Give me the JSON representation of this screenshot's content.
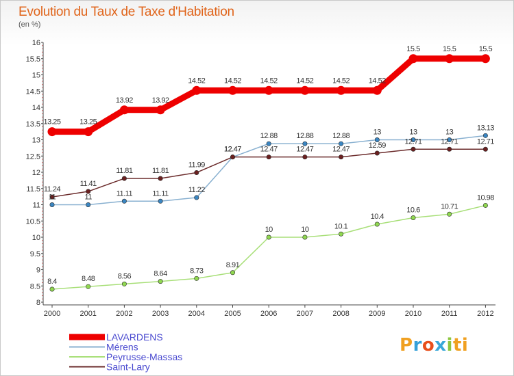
{
  "header": {
    "title": "Evolution du Taux de Taxe d'Habitation",
    "unit": "(en %)"
  },
  "logo": {
    "text": "Proxiti"
  },
  "colors": {
    "LAVARDENS": "#ee0000",
    "Mérens": "#88b0d0",
    "Peyrusse-Massas": "#a8df78",
    "Saint-Lary": "#6b2b2b",
    "Mérens_marker": "#3b86c2",
    "Peyrusse-Massas_marker": "#90d850",
    "Saint-Lary_marker": "#6b2020",
    "legend_text": "#4a4ad0",
    "axis": "#444444"
  },
  "chart_data": {
    "type": "line",
    "title": "Evolution du Taux de Taxe d'Habitation",
    "ylabel": "(en %)",
    "xlabel": "",
    "x": [
      "2000",
      "2001",
      "2002",
      "2003",
      "2004",
      "2005",
      "2006",
      "2007",
      "2008",
      "2009",
      "2010",
      "2011",
      "2012"
    ],
    "ylim": [
      8,
      16
    ],
    "yticks": [
      "8",
      "8.5",
      "9",
      "9.5",
      "10",
      "10.5",
      "11",
      "11.5",
      "12",
      "12.5",
      "13",
      "13.5",
      "14",
      "14.5",
      "15",
      "15.5",
      "16"
    ],
    "grid": false,
    "legend_position": "bottom-left",
    "series": [
      {
        "name": "LAVARDENS",
        "values": [
          13.25,
          13.25,
          13.92,
          13.92,
          14.52,
          14.52,
          14.52,
          14.52,
          14.52,
          14.52,
          15.5,
          15.5,
          15.5
        ],
        "labels": [
          "13.25",
          "13.25",
          "13.92",
          "13.92",
          "14.52",
          "14.52",
          "14.52",
          "14.52",
          "14.52",
          "14.52",
          "15.5",
          "15.5",
          "15.5"
        ]
      },
      {
        "name": "Mérens",
        "values": [
          11,
          11,
          11.11,
          11.11,
          11.22,
          12.47,
          12.88,
          12.88,
          12.88,
          13,
          13,
          13,
          13.13
        ],
        "labels": [
          "11",
          "11",
          "11.11",
          "11.11",
          "11.22",
          "12.47",
          "12.88",
          "12.88",
          "12.88",
          "13",
          "13",
          "13",
          "13.13"
        ]
      },
      {
        "name": "Peyrusse-Massas",
        "values": [
          8.4,
          8.48,
          8.56,
          8.64,
          8.73,
          8.91,
          10,
          10,
          10.1,
          10.4,
          10.6,
          10.71,
          10.98
        ],
        "labels": [
          "8.4",
          "8.48",
          "8.56",
          "8.64",
          "8.73",
          "8.91",
          "10",
          "10",
          "10.1",
          "10.4",
          "10.6",
          "10.71",
          "10.98"
        ]
      },
      {
        "name": "Saint-Lary",
        "values": [
          11.24,
          11.41,
          11.81,
          11.81,
          11.99,
          12.47,
          12.47,
          12.47,
          12.47,
          12.59,
          12.71,
          12.71,
          12.71
        ],
        "labels": [
          "11.24",
          "11.41",
          "11.81",
          "11.81",
          "11.99",
          "12.47",
          "12.47",
          "12.47",
          "12.47",
          "12.59",
          "12.71",
          "12.71",
          "12.71"
        ]
      }
    ]
  }
}
